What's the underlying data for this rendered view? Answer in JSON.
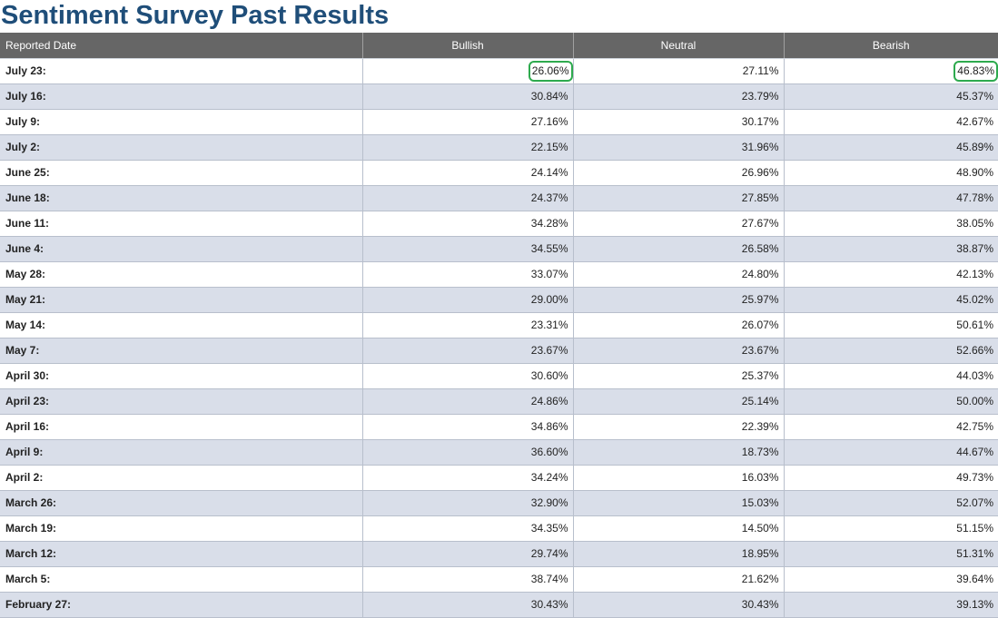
{
  "page": {
    "title": "Sentiment Survey Past Results"
  },
  "table": {
    "headers": {
      "date": "Reported Date",
      "bullish": "Bullish",
      "neutral": "Neutral",
      "bearish": "Bearish"
    },
    "rows": [
      {
        "date": "July 23:",
        "bullish": "26.06%",
        "neutral": "27.11%",
        "bearish": "46.83%",
        "bullish_circled": true,
        "bearish_circled": true
      },
      {
        "date": "July 16:",
        "bullish": "30.84%",
        "neutral": "23.79%",
        "bearish": "45.37%"
      },
      {
        "date": "July 9:",
        "bullish": "27.16%",
        "neutral": "30.17%",
        "bearish": "42.67%"
      },
      {
        "date": "July 2:",
        "bullish": "22.15%",
        "neutral": "31.96%",
        "bearish": "45.89%"
      },
      {
        "date": "June 25:",
        "bullish": "24.14%",
        "neutral": "26.96%",
        "bearish": "48.90%"
      },
      {
        "date": "June 18:",
        "bullish": "24.37%",
        "neutral": "27.85%",
        "bearish": "47.78%"
      },
      {
        "date": "June 11:",
        "bullish": "34.28%",
        "neutral": "27.67%",
        "bearish": "38.05%"
      },
      {
        "date": "June 4:",
        "bullish": "34.55%",
        "neutral": "26.58%",
        "bearish": "38.87%"
      },
      {
        "date": "May 28:",
        "bullish": "33.07%",
        "neutral": "24.80%",
        "bearish": "42.13%"
      },
      {
        "date": "May 21:",
        "bullish": "29.00%",
        "neutral": "25.97%",
        "bearish": "45.02%"
      },
      {
        "date": "May 14:",
        "bullish": "23.31%",
        "neutral": "26.07%",
        "bearish": "50.61%"
      },
      {
        "date": "May 7:",
        "bullish": "23.67%",
        "neutral": "23.67%",
        "bearish": "52.66%"
      },
      {
        "date": "April 30:",
        "bullish": "30.60%",
        "neutral": "25.37%",
        "bearish": "44.03%"
      },
      {
        "date": "April 23:",
        "bullish": "24.86%",
        "neutral": "25.14%",
        "bearish": "50.00%"
      },
      {
        "date": "April 16:",
        "bullish": "34.86%",
        "neutral": "22.39%",
        "bearish": "42.75%"
      },
      {
        "date": "April 9:",
        "bullish": "36.60%",
        "neutral": "18.73%",
        "bearish": "44.67%"
      },
      {
        "date": "April 2:",
        "bullish": "34.24%",
        "neutral": "16.03%",
        "bearish": "49.73%"
      },
      {
        "date": "March 26:",
        "bullish": "32.90%",
        "neutral": "15.03%",
        "bearish": "52.07%"
      },
      {
        "date": "March 19:",
        "bullish": "34.35%",
        "neutral": "14.50%",
        "bearish": "51.15%"
      },
      {
        "date": "March 12:",
        "bullish": "29.74%",
        "neutral": "18.95%",
        "bearish": "51.31%"
      },
      {
        "date": "March 5:",
        "bullish": "38.74%",
        "neutral": "21.62%",
        "bearish": "39.64%"
      },
      {
        "date": "February 27:",
        "bullish": "30.43%",
        "neutral": "30.43%",
        "bearish": "39.13%"
      }
    ]
  },
  "colors": {
    "title": "#1f4e79",
    "header_bg": "#666666",
    "row_alt_bg": "#d9dee9",
    "highlight_circle": "#2eaa4e"
  }
}
